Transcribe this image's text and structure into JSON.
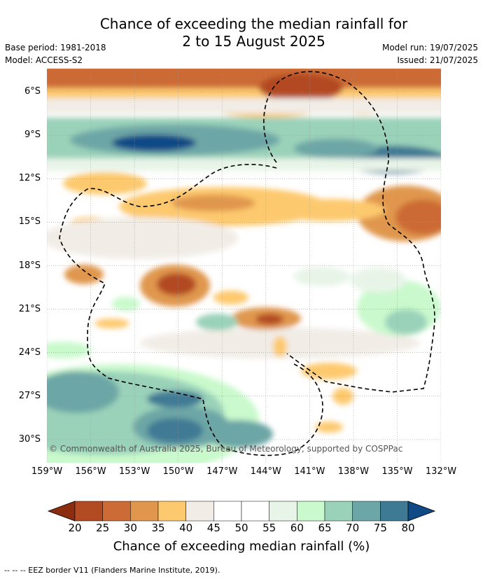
{
  "title_line1": "Chance of exceeding the median rainfall for",
  "title_line2": "2 to 15 August 2025",
  "base_period": "Base period: 1981-2018",
  "model": "Model: ACCESS-S2",
  "model_run": "Model run: 19/07/2025",
  "issued": "Issued: 21/07/2025",
  "copyright": "© Commonwealth of Australia 2025, Bureau of Meteorology, supported by COSPPac",
  "footer": "--  --  -- EEZ border V11 (Flanders Marine Institute, 2019).",
  "colorbar": {
    "label": "Chance of exceeding median rainfall (%)",
    "ticks": [
      "20",
      "25",
      "30",
      "35",
      "40",
      "45",
      "50",
      "55",
      "60",
      "65",
      "70",
      "75",
      "80"
    ],
    "colors": [
      "#8c2d10",
      "#b24a22",
      "#cc6b36",
      "#e0974d",
      "#fdc96e",
      "#f1ece6",
      "#ffffff",
      "#ffffff",
      "#e8f4e8",
      "#c9f9cc",
      "#9ad1b9",
      "#6da6a6",
      "#3f7a94",
      "#0f4a86"
    ]
  },
  "chart_data": {
    "type": "heatmap",
    "title": "Chance of exceeding the median rainfall for 2 to 15 August 2025",
    "xlabel": "",
    "ylabel": "",
    "x_ticks": [
      "159°W",
      "156°W",
      "153°W",
      "150°W",
      "147°W",
      "144°W",
      "141°W",
      "138°W",
      "135°W",
      "132°W"
    ],
    "y_ticks": [
      "6°S",
      "9°S",
      "12°S",
      "15°S",
      "18°S",
      "21°S",
      "24°S",
      "27°S",
      "30°S"
    ],
    "xlim": [
      -159,
      -132
    ],
    "ylim": [
      -31.6,
      -4.4
    ],
    "grid": true,
    "value_unit": "%",
    "colorbar_range": [
      20,
      80
    ]
  }
}
